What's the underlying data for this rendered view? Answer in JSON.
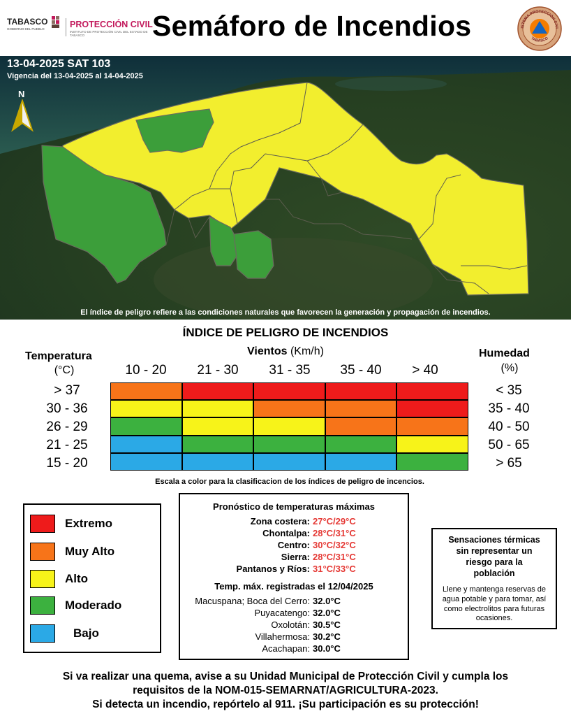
{
  "header": {
    "logo_tabasco": "TABASCO",
    "logo_tabasco_sub": "GOBIERNO DEL PUEBLO",
    "logo_pc": "PROTECCIÓN CIVIL",
    "logo_pc_sub": "INSTITUTO DE PROTECCIÓN CIVIL DEL ESTADO DE TABASCO",
    "title": "Semáforo de Incendios",
    "seal_text_top": "SISTEMA PROTECCIÓN CIVIL",
    "seal_text_bottom": "TABASCO"
  },
  "map": {
    "date_code": "13-04-2025 SAT 103",
    "validity": "Vigencia del 13-04-2025 al 14-04-2025",
    "north": "N",
    "note": "El índice de peligro refiere a las condiciones naturales que favorecen la generación y propagación de incendios.",
    "region_levels": [
      "Alto",
      "Moderado"
    ]
  },
  "index": {
    "title": "ÍNDICE DE PELIGRO DE INCENDIOS",
    "winds_label": "Vientos",
    "winds_unit": "(Km/h)",
    "temperature_label": "Temperatura",
    "temperature_unit": "(°C)",
    "humidity_label": "Humedad",
    "humidity_unit": "(%)",
    "wind_ranges": [
      "10 - 20",
      "21 - 30",
      "31 - 35",
      "35 - 40",
      "> 40"
    ],
    "temperature_ranges": [
      "> 37",
      "30 - 36",
      "26 - 29",
      "21 - 25",
      "15 - 20"
    ],
    "humidity_ranges": [
      "< 35",
      "35 - 40",
      "40 - 50",
      "50 - 65",
      "> 65"
    ],
    "matrix": [
      [
        "Muy Alto",
        "Extremo",
        "Extremo",
        "Extremo",
        "Extremo"
      ],
      [
        "Alto",
        "Alto",
        "Muy Alto",
        "Muy Alto",
        "Extremo"
      ],
      [
        "Moderado",
        "Alto",
        "Alto",
        "Muy Alto",
        "Muy Alto"
      ],
      [
        "Bajo",
        "Moderado",
        "Moderado",
        "Moderado",
        "Alto"
      ],
      [
        "Bajo",
        "Bajo",
        "Bajo",
        "Bajo",
        "Moderado"
      ]
    ],
    "scale_caption": "Escala a color para la clasificacion de los índices de peligro de incencios."
  },
  "colors": {
    "Extremo": "#ee1b1b",
    "Muy Alto": "#f77419",
    "Alto": "#f7f319",
    "Moderado": "#3cb13f",
    "Bajo": "#2ba9e6"
  },
  "legend": {
    "items": [
      {
        "label": "Extremo",
        "color": "#ee1b1b"
      },
      {
        "label": "Muy Alto",
        "color": "#f77419"
      },
      {
        "label": "Alto",
        "color": "#f7f319"
      },
      {
        "label": "Moderado",
        "color": "#3cb13f"
      },
      {
        "label": "Bajo",
        "color": "#2ba9e6"
      }
    ]
  },
  "forecast": {
    "title": "Pronóstico de temperaturas máximas",
    "zones": [
      {
        "name": "Zona costera:",
        "range": "27°C/29°C"
      },
      {
        "name": "Chontalpa:",
        "range": "28°C/31°C"
      },
      {
        "name": "Centro:",
        "range": "30°C/32°C"
      },
      {
        "name": "Sierra:",
        "range": "28°C/31°C"
      },
      {
        "name": "Pantanos y Ríos:",
        "range": "31°C/33°C"
      }
    ],
    "recorded_title": "Temp. máx. registradas el 12/04/2025",
    "recorded": [
      {
        "place": "Macuspana; Boca del Cerro:",
        "temp": "32.0°C"
      },
      {
        "place": "Puyacatengo:",
        "temp": "32.0°C"
      },
      {
        "place": "Oxolotán:",
        "temp": "30.5°C"
      },
      {
        "place": "Villahermosa:",
        "temp": "30.2°C"
      },
      {
        "place": "Acachapan:",
        "temp": "30.0°C"
      }
    ]
  },
  "advice": {
    "title_lines": [
      "Sensaciones térmicas",
      "sin representar un",
      "riesgo para la",
      "población"
    ],
    "body": "Llene y mantenga reservas de agua potable y para tomar, así como electrolitos para futuras ocasiones."
  },
  "footer": {
    "lines": [
      "Si va realizar una quema, avise a su Unidad Municipal de Protección Civil y cumpla los",
      "requisitos de la NOM-015-SEMARNAT/AGRICULTURA-2023.",
      "Si detecta un incendio, repórtelo al 911. ¡Su participación es su protección!"
    ]
  }
}
